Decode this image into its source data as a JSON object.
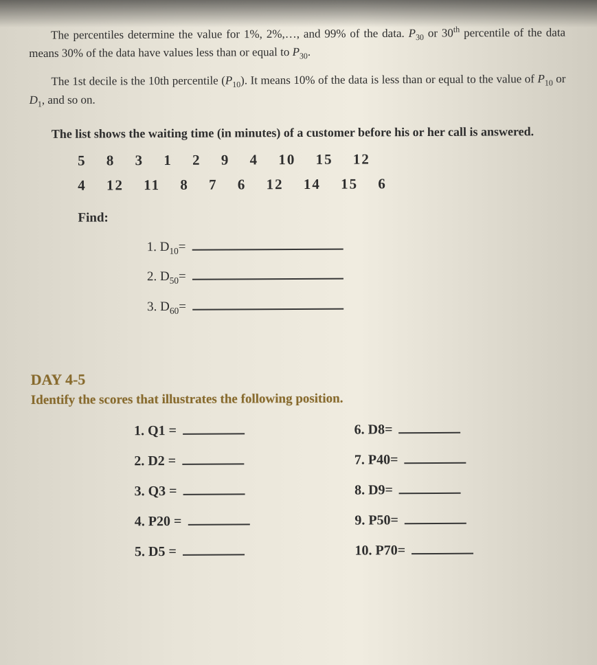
{
  "intro": {
    "p1_a": "The percentiles determine the value for 1%, 2%,…, and 99% of the data. ",
    "p1_b": "P",
    "p1_c": " or 30",
    "p1_d": " percentile of the data means 30% of the data have values less than or equal to ",
    "p1_e": "P",
    "p1_f": ".",
    "p2_a": "The 1st decile is the 10th percentile (",
    "p2_b": "P",
    "p2_c": "). It means 10% of the data is less than or equal to the value of ",
    "p2_d": "P",
    "p2_e": " or ",
    "p2_f": "D",
    "p2_g": ", and so on."
  },
  "problem": {
    "lead": "The list shows the waiting time (in minutes) of a customer before his or her call is answered.",
    "row1": "5   8   3   1   2   9   4   10   15   12",
    "row2": "4   12   11   8   7   6   12   14   15   6",
    "find_label": "Find:",
    "items": [
      {
        "n": "1.",
        "sym": "D",
        "sub": "10",
        "eq": "="
      },
      {
        "n": "2.",
        "sym": "D",
        "sub": "50",
        "eq": "="
      },
      {
        "n": "3.",
        "sym": "D",
        "sub": "60",
        "eq": "="
      }
    ]
  },
  "day": {
    "heading": "DAY 4-5",
    "instruction": "Identify the scores that illustrates the following position.",
    "answers": [
      {
        "n": "1.",
        "lbl": "Q1 ="
      },
      {
        "n": "2.",
        "lbl": "D2 ="
      },
      {
        "n": "3.",
        "lbl": "Q3 ="
      },
      {
        "n": "4.",
        "lbl": "P20 ="
      },
      {
        "n": "5.",
        "lbl": "D5 ="
      },
      {
        "n": "6.",
        "lbl": "D8="
      },
      {
        "n": "7.",
        "lbl": "P40="
      },
      {
        "n": "8.",
        "lbl": "D9="
      },
      {
        "n": "9.",
        "lbl": "P50="
      },
      {
        "n": "10.",
        "lbl": "P70="
      }
    ]
  }
}
